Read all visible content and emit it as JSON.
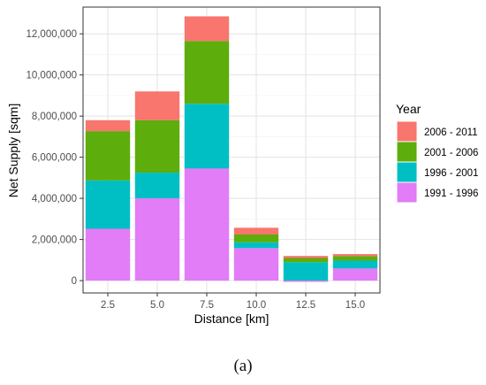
{
  "caption": "(a)",
  "chart_data": {
    "type": "bar",
    "stacked": true,
    "xlabel": "Distance [km]",
    "ylabel": "Net Supply [sqm]",
    "categories": [
      "2.5",
      "5.0",
      "7.5",
      "10.0",
      "12.5",
      "15.0"
    ],
    "ylim": [
      -600000,
      13300000
    ],
    "yticks": [
      0,
      2000000,
      4000000,
      6000000,
      8000000,
      10000000,
      12000000
    ],
    "ytick_labels": [
      "0",
      "2,000,000",
      "4,000,000",
      "6,000,000",
      "8,000,000",
      "10,000,000",
      "12,000,000"
    ],
    "grid": true,
    "legend": {
      "title": "Year",
      "position": "right"
    },
    "series": [
      {
        "name": "1991 - 1996",
        "color": "#E27CF7",
        "values": [
          2520000,
          4000000,
          5450000,
          1580000,
          -60000,
          590000
        ]
      },
      {
        "name": "1996 - 2001",
        "color": "#00BFC4",
        "values": [
          2350000,
          1250000,
          3150000,
          280000,
          890000,
          380000
        ]
      },
      {
        "name": "2001 - 2006",
        "color": "#5DAD0C",
        "values": [
          2400000,
          2550000,
          3050000,
          380000,
          210000,
          220000
        ]
      },
      {
        "name": "2006 - 2011",
        "color": "#F8766D",
        "values": [
          530000,
          1400000,
          1200000,
          330000,
          100000,
          100000
        ]
      }
    ]
  }
}
